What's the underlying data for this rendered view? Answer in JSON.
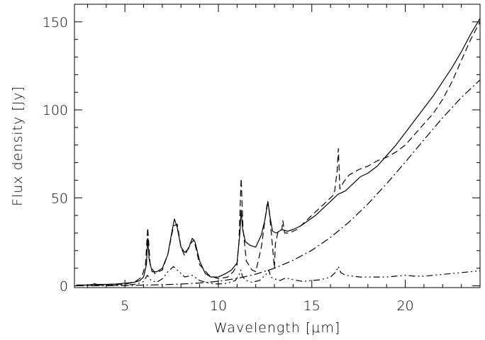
{
  "chart_data": {
    "type": "line",
    "xlabel": "Wavelength [μm]",
    "ylabel": "Flux density [Jy]",
    "xlim": [
      2.3,
      24
    ],
    "ylim": [
      -1,
      160
    ],
    "xticks": [
      5,
      10,
      15,
      20
    ],
    "yticks": [
      0,
      50,
      100,
      150
    ],
    "grid": false,
    "series": [
      {
        "style": "solid",
        "x": [
          2.4,
          3.0,
          3.3,
          3.35,
          3.5,
          4.0,
          4.5,
          5.0,
          5.5,
          5.8,
          6.0,
          6.15,
          6.22,
          6.3,
          6.45,
          6.7,
          7.0,
          7.3,
          7.5,
          7.65,
          7.8,
          8.0,
          8.2,
          8.4,
          8.6,
          8.75,
          9.0,
          9.3,
          9.6,
          10.0,
          10.4,
          10.7,
          11.0,
          11.15,
          11.22,
          11.3,
          11.45,
          11.7,
          12.0,
          12.3,
          12.5,
          12.65,
          12.75,
          12.9,
          13.1,
          13.4,
          13.7,
          14.0,
          14.4,
          14.8,
          15.2,
          15.6,
          16.0,
          16.4,
          16.8,
          17.2,
          17.6,
          18.0,
          18.5,
          19.0,
          19.5,
          20.0,
          20.5,
          21.0,
          21.5,
          22.0,
          22.5,
          23.0,
          23.5,
          24.0
        ],
        "y": [
          0.5,
          0.5,
          0.8,
          1.2,
          0.8,
          0.8,
          1.0,
          1.5,
          2.0,
          3.0,
          5.0,
          12,
          27,
          15,
          8,
          8,
          10,
          18,
          30,
          38,
          33,
          22,
          19,
          21,
          27,
          25,
          14,
          7,
          5,
          5,
          7,
          9,
          13,
          30,
          43,
          32,
          25,
          23,
          22,
          29,
          38,
          48,
          40,
          31,
          30,
          32,
          31,
          32,
          34,
          37,
          40,
          44,
          48,
          52,
          54,
          58,
          62,
          64,
          68,
          74,
          80,
          87,
          94,
          101,
          108,
          116,
          124,
          133,
          143,
          152
        ]
      },
      {
        "style": "dashed",
        "x": [
          2.4,
          3.0,
          4.0,
          5.0,
          5.5,
          5.9,
          6.1,
          6.22,
          6.35,
          6.6,
          7.0,
          7.3,
          7.6,
          7.8,
          8.0,
          8.2,
          8.5,
          8.7,
          9.0,
          9.5,
          10.0,
          10.5,
          10.8,
          11.0,
          11.1,
          11.22,
          11.32,
          11.5,
          11.8,
          12.0,
          12.3,
          12.6,
          12.7,
          12.85,
          13.0,
          13.05,
          13.2,
          13.4,
          13.45,
          13.55,
          13.8,
          14.2,
          14.6,
          15.0,
          15.4,
          15.8,
          16.2,
          16.35,
          16.42,
          16.5,
          16.7,
          17.0,
          17.5,
          18.0,
          18.5,
          19.0,
          19.5,
          20.0,
          20.5,
          21.0,
          21.5,
          22.0,
          22.5,
          23.0,
          23.5,
          24.0
        ],
        "y": [
          0.2,
          0.3,
          0.5,
          1.0,
          2.0,
          5.0,
          12,
          33,
          12,
          7,
          9,
          18,
          34,
          35,
          22,
          17,
          24,
          26,
          12,
          6,
          4,
          5,
          8,
          12,
          25,
          61,
          32,
          14,
          9,
          8,
          22,
          46,
          45,
          28,
          10,
          24,
          31,
          32,
          37,
          30,
          30,
          32,
          36,
          40,
          44,
          48,
          52,
          65,
          78,
          55,
          59,
          63,
          66,
          68,
          71,
          73,
          76,
          80,
          86,
          92,
          98,
          106,
          116,
          128,
          140,
          150
        ]
      },
      {
        "style": "dash-dot",
        "x": [
          2.4,
          4.0,
          5.0,
          6.0,
          7.0,
          8.0,
          9.0,
          10.0,
          11.0,
          12.0,
          13.0,
          14.0,
          15.0,
          16.0,
          17.0,
          18.0,
          19.0,
          20.0,
          21.0,
          22.0,
          23.0,
          24.0
        ],
        "y": [
          0.1,
          0.1,
          0.2,
          0.4,
          0.6,
          1.0,
          1.6,
          2.6,
          4.2,
          6.6,
          10.0,
          14.5,
          20.2,
          27.5,
          36.3,
          46.5,
          58.0,
          70.3,
          83.0,
          95.5,
          107.0,
          117.0
        ]
      },
      {
        "style": "dash-dot-dot",
        "x": [
          2.4,
          3.0,
          3.3,
          3.5,
          4.5,
          5.0,
          5.5,
          5.8,
          6.0,
          6.2,
          6.4,
          6.7,
          7.0,
          7.3,
          7.6,
          7.9,
          8.2,
          8.6,
          9.0,
          9.5,
          10.0,
          10.5,
          10.9,
          11.1,
          11.2,
          11.3,
          11.5,
          11.8,
          12.2,
          12.6,
          12.7,
          12.8,
          13.0,
          13.3,
          13.6,
          14.0,
          14.5,
          15.0,
          15.5,
          16.0,
          16.3,
          16.42,
          16.55,
          16.8,
          17.2,
          17.6,
          18.0,
          18.5,
          19.0,
          19.5,
          20.0,
          20.5,
          21.0,
          21.5,
          22.0,
          22.5,
          23.0,
          23.5,
          24.0
        ],
        "y": [
          0.3,
          0.3,
          0.8,
          0.3,
          0.3,
          0.5,
          0.8,
          1.5,
          2.5,
          6.0,
          3.0,
          2.0,
          4.0,
          8.0,
          11,
          8,
          5,
          6,
          3,
          1.5,
          1.0,
          1.5,
          3.0,
          6.0,
          9.0,
          5.0,
          3.0,
          2.0,
          3.0,
          7.0,
          9.0,
          5.0,
          4.0,
          3.0,
          4.5,
          3.5,
          2.5,
          3.0,
          3.5,
          5.0,
          8.0,
          11,
          7.5,
          6.0,
          5.5,
          5.0,
          5.0,
          5.0,
          5.0,
          5.5,
          6.0,
          5.5,
          5.5,
          6.0,
          6.5,
          7.0,
          7.5,
          8.0,
          8.5
        ]
      }
    ]
  }
}
